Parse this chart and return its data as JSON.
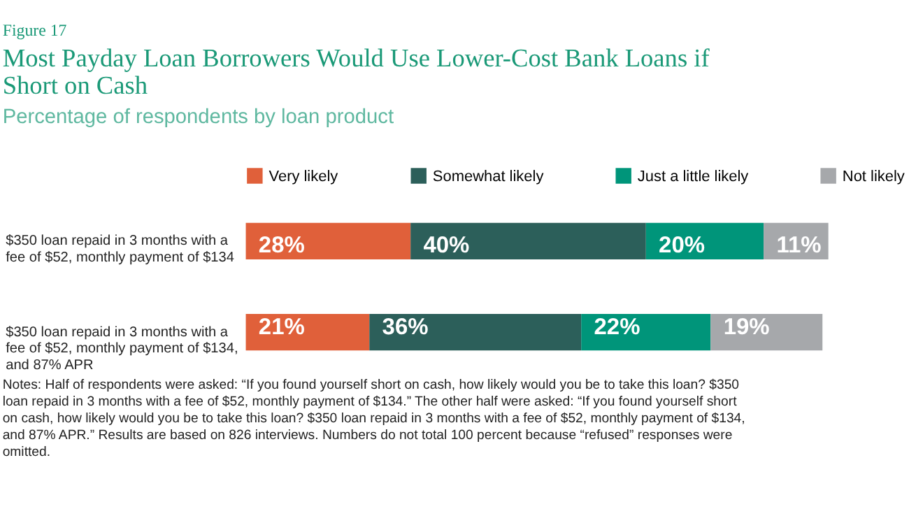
{
  "chart_data": {
    "type": "bar",
    "orientation": "horizontal",
    "stacked": true,
    "title": "Most Payday Loan Borrowers Would Use Lower-Cost Bank Loans if Short on Cash",
    "subtitle": "Percentage of respondents by loan product",
    "categories": [
      "$350 loan repaid in 3 months with a fee of $52, monthly payment of $134",
      "$350 loan repaid in 3 months with a fee of $52, monthly payment of $134, and 87% APR"
    ],
    "series": [
      {
        "name": "Very likely",
        "color": "#e0603a",
        "values": [
          28,
          21
        ],
        "value_labels": [
          "28%",
          "21%"
        ]
      },
      {
        "name": "Somewhat likely",
        "color": "#2c5f5a",
        "values": [
          40,
          36
        ],
        "value_labels": [
          "40%",
          "36%"
        ]
      },
      {
        "name": "Just a little likely",
        "color": "#00957a",
        "values": [
          20,
          22
        ],
        "value_labels": [
          "20%",
          "22%"
        ]
      },
      {
        "name": "Not likely",
        "color": "#a6a8ab",
        "values": [
          11,
          19
        ],
        "value_labels": [
          "11%",
          "19%"
        ]
      }
    ],
    "legend": "top",
    "annotations": [
      "Figure 17",
      "Notes: Half of respondents were asked: “If you found yourself short on cash, how likely would you be to take this loan? $350 loan repaid in 3 months with a fee of $52, monthly payment of $134.” The other half were asked: “If you found yourself short on cash, how likely would you be to take this loan? $350 loan repaid in 3 months with a fee of $52, monthly payment of $134, and 87% APR.” Results are based on 826 interviews. Numbers do not total 100 percent because “refused” responses were omitted."
    ]
  }
}
